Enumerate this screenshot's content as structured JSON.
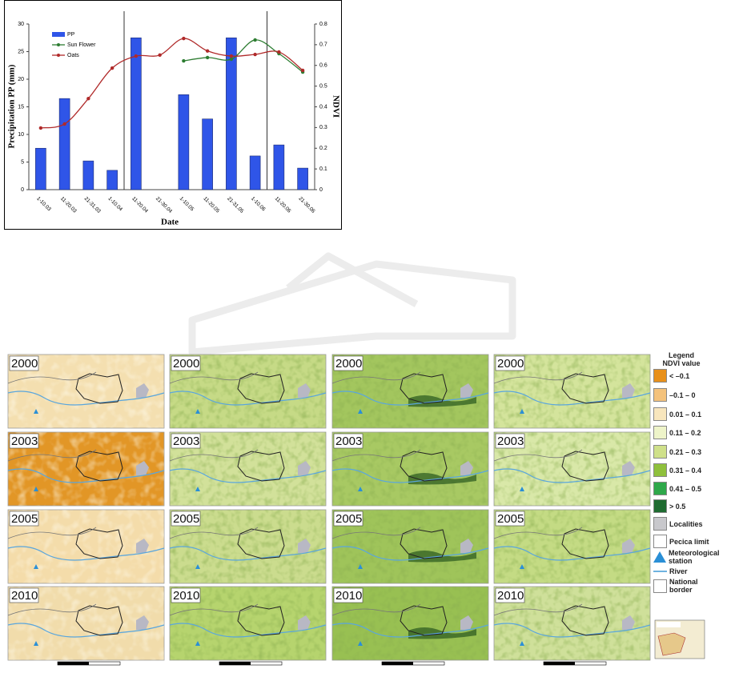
{
  "chart_data": {
    "type": "combo",
    "x_label": "Date",
    "y_label": "Precipitation  PP (mm)",
    "y2_label": "NDVI",
    "categories": [
      "1-10.03",
      "11-20.03",
      "21-31.03",
      "1-10.04",
      "11-20.04",
      "21-30.04",
      "1-10.05",
      "11-20.05",
      "21-31.05",
      "1-10.06",
      "11-20.06",
      "21-30.06"
    ],
    "series": [
      {
        "name": "PP",
        "type": "bar",
        "color": "#2f55e8",
        "values": [
          7.5,
          16.5,
          5.2,
          3.5,
          27.5,
          0,
          17.2,
          12.8,
          27.5,
          6.1,
          8.1,
          3.9
        ]
      },
      {
        "name": "Sun Flower",
        "type": "line",
        "axis": "y2",
        "color": "#2e7d32",
        "values": [
          null,
          null,
          null,
          null,
          null,
          null,
          0.622,
          0.638,
          0.63,
          0.723,
          0.657,
          0.568
        ]
      },
      {
        "name": "Oats",
        "type": "line",
        "axis": "y2",
        "color": "#b02a2a",
        "values": [
          0.298,
          0.317,
          0.44,
          0.587,
          0.645,
          0.65,
          0.73,
          0.67,
          0.645,
          0.653,
          0.665,
          0.576
        ]
      }
    ],
    "ylim": [
      0,
      30
    ],
    "yticks": [
      0,
      5,
      10,
      15,
      20,
      25,
      30
    ],
    "y2lim": [
      0,
      0.8
    ],
    "y2ticks": [
      0,
      0.1,
      0.2,
      0.3,
      0.4,
      0.5,
      0.6,
      0.7,
      0.8
    ],
    "grid": false,
    "legend": "upper left"
  },
  "figure": {
    "years": [
      "2000",
      "2003",
      "2005",
      "2010"
    ],
    "legend": {
      "title": "Legend",
      "subtitle": "NDVI value",
      "items": [
        {
          "label": "< –0.1",
          "color": "#e8901a",
          "symbol": "box"
        },
        {
          "label": "–0.1 – 0",
          "color": "#f4c27c",
          "symbol": "box"
        },
        {
          "label": "0.01 – 0.1",
          "color": "#f8e6bd",
          "symbol": "box"
        },
        {
          "label": "0.11 – 0.2",
          "color": "#eef4c9",
          "symbol": "box"
        },
        {
          "label": "0.21 – 0.3",
          "color": "#cfe08a",
          "symbol": "box"
        },
        {
          "label": "0.31 – 0.4",
          "color": "#8fc03c",
          "symbol": "box"
        },
        {
          "label": "0.41 – 0.5",
          "color": "#2ea84a",
          "symbol": "box"
        },
        {
          "label": "> 0.5",
          "color": "#1e6b30",
          "symbol": "box"
        },
        {
          "label": "Localities",
          "color": "#c8c8cc",
          "symbol": "box"
        },
        {
          "label": "Pecica limit",
          "color": "#ffffff",
          "symbol": "box"
        },
        {
          "label": "Meteorological station",
          "color": "#2a8fd6",
          "symbol": "triangle"
        },
        {
          "label": "River",
          "color": "#6fb3e0",
          "symbol": "line"
        },
        {
          "label": "National border",
          "color": "#ffffff",
          "symbol": "box"
        }
      ]
    }
  }
}
